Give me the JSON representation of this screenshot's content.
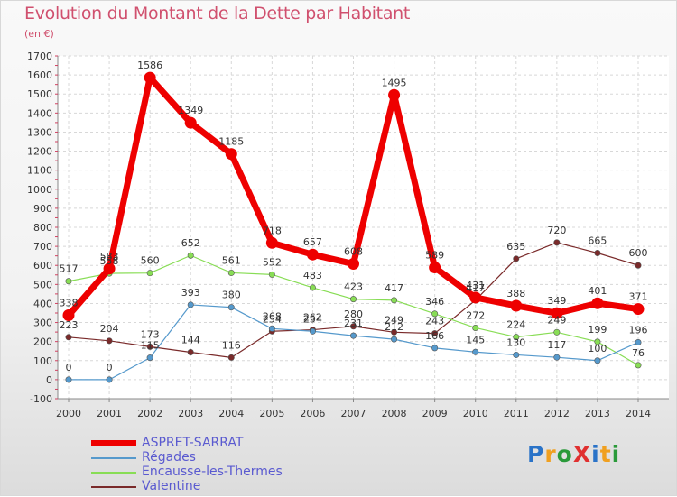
{
  "title": "Evolution du Montant de la Dette par Habitant",
  "subtitle": "(en €)",
  "logo": "ProXiti",
  "chart_data": {
    "type": "line",
    "title": "Evolution du Montant de la Dette par Habitant",
    "ylabel": "(en €)",
    "xlabel": "",
    "x": [
      "2000",
      "2001",
      "2002",
      "2003",
      "2004",
      "2005",
      "2006",
      "2007",
      "2008",
      "2009",
      "2010",
      "2011",
      "2012",
      "2013",
      "2014"
    ],
    "ylim": [
      -100,
      1700
    ],
    "yticks": [
      -100,
      0,
      100,
      200,
      300,
      400,
      500,
      600,
      700,
      800,
      900,
      1000,
      1100,
      1200,
      1300,
      1400,
      1500,
      1600,
      1700
    ],
    "grid": true,
    "legend_position": "bottom-left",
    "series": [
      {
        "name": "ASPRET-SARRAT",
        "color": "#ee0000",
        "values": [
          338,
          583,
          1586,
          1349,
          1185,
          718,
          657,
          608,
          1495,
          589,
          431,
          388,
          349,
          401,
          371
        ]
      },
      {
        "name": "Régades",
        "color": "#5599cc",
        "values": [
          0,
          0,
          115,
          393,
          380,
          268,
          254,
          231,
          212,
          166,
          145,
          130,
          117,
          100,
          196
        ]
      },
      {
        "name": "Encausse-les-Thermes",
        "color": "#88dd55",
        "values": [
          517,
          558,
          560,
          652,
          561,
          552,
          483,
          423,
          417,
          346,
          272,
          224,
          249,
          199,
          76
        ]
      },
      {
        "name": "Valentine",
        "color": "#7a2a2a",
        "values": [
          223,
          204,
          173,
          144,
          116,
          254,
          262,
          280,
          249,
          243,
          417,
          635,
          720,
          665,
          600
        ]
      }
    ]
  }
}
